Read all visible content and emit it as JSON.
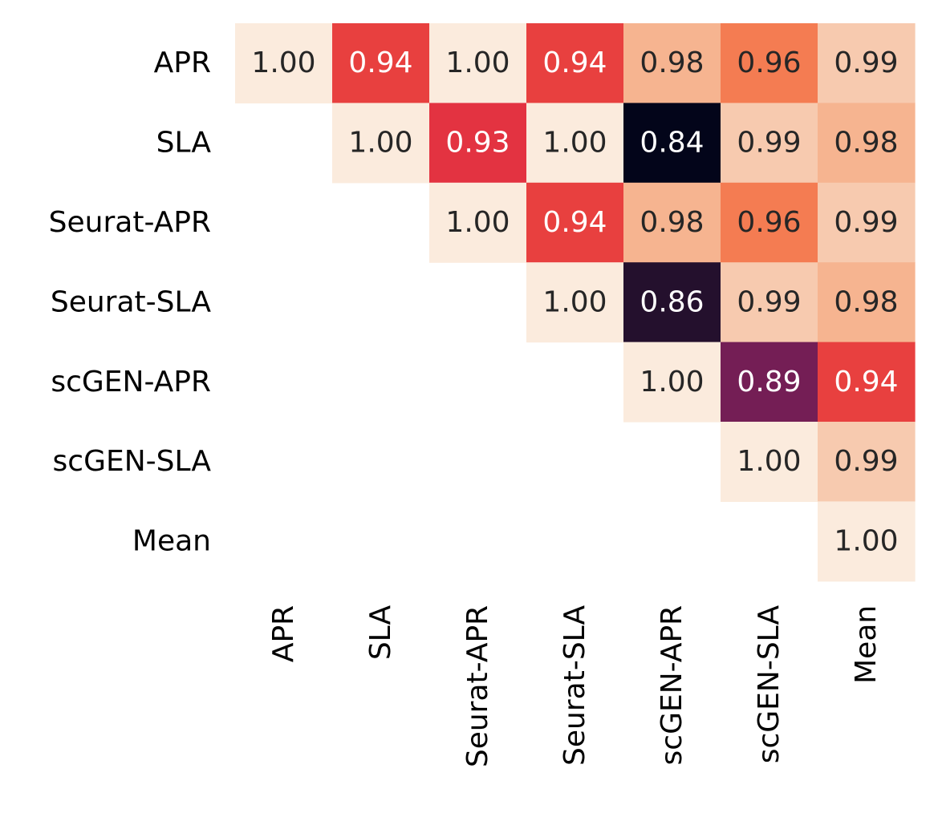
{
  "chart_data": {
    "type": "heatmap",
    "title": "",
    "xlabel": "",
    "ylabel": "",
    "rows": [
      "APR",
      "SLA",
      "Seurat-APR",
      "Seurat-SLA",
      "scGEN-APR",
      "scGEN-SLA",
      "Mean"
    ],
    "columns": [
      "APR",
      "SLA",
      "Seurat-APR",
      "Seurat-SLA",
      "scGEN-APR",
      "scGEN-SLA",
      "Mean"
    ],
    "matrix": [
      [
        1.0,
        0.94,
        1.0,
        0.94,
        0.98,
        0.96,
        0.99
      ],
      [
        null,
        1.0,
        0.93,
        1.0,
        0.84,
        0.99,
        0.98
      ],
      [
        null,
        null,
        1.0,
        0.94,
        0.98,
        0.96,
        0.99
      ],
      [
        null,
        null,
        null,
        1.0,
        0.86,
        0.99,
        0.98
      ],
      [
        null,
        null,
        null,
        null,
        1.0,
        0.89,
        0.94
      ],
      [
        null,
        null,
        null,
        null,
        null,
        1.0,
        0.99
      ],
      [
        null,
        null,
        null,
        null,
        null,
        null,
        1.0
      ]
    ],
    "value_format": "2 decimals",
    "colormap": "rocket",
    "color_range": [
      0.84,
      1.0
    ],
    "colorbar": false,
    "grid": false,
    "mask": "lower-triangle"
  }
}
